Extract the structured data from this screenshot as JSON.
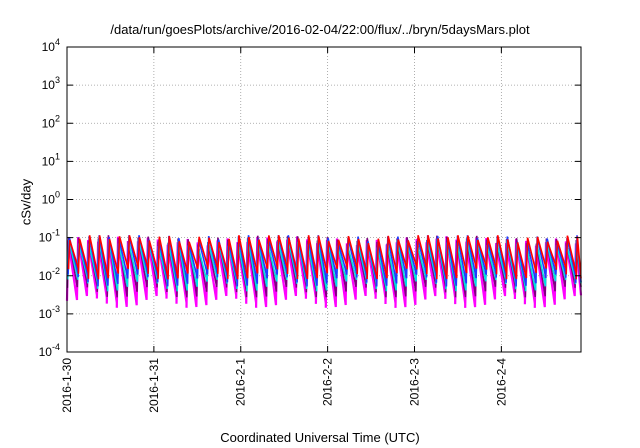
{
  "chart_data": {
    "type": "line",
    "title": "/data/run/goesPlots/archive/2016-02-04/22:00/flux/../bryn/5daysMars.plot",
    "xlabel": "Coordinated Universal Time (UTC)",
    "ylabel": "cSv/day",
    "y_scale": "log",
    "ylim": [
      0.0001,
      10000
    ],
    "y_ticks": [
      {
        "value": 0.0001,
        "mantissa": "10",
        "exponent": "-4"
      },
      {
        "value": 0.001,
        "mantissa": "10",
        "exponent": "-3"
      },
      {
        "value": 0.01,
        "mantissa": "10",
        "exponent": "-2"
      },
      {
        "value": 0.1,
        "mantissa": "10",
        "exponent": "-1"
      },
      {
        "value": 1,
        "mantissa": "10",
        "exponent": "0"
      },
      {
        "value": 10,
        "mantissa": "10",
        "exponent": "1"
      },
      {
        "value": 100,
        "mantissa": "10",
        "exponent": "2"
      },
      {
        "value": 1000,
        "mantissa": "10",
        "exponent": "3"
      },
      {
        "value": 10000,
        "mantissa": "10",
        "exponent": "4"
      }
    ],
    "xlim": [
      "2016-01-30T00:00",
      "2016-02-04T22:00"
    ],
    "x_ticks": [
      "2016-1-30",
      "2016-1-31",
      "2016-2-1",
      "2016-2-2",
      "2016-2-3",
      "2016-2-4"
    ],
    "grid": true,
    "legend": "none",
    "approx_oscillation_period_hours": 2.75,
    "series": [
      {
        "color": "#ff00ff",
        "peak": 0.085,
        "trough": 0.0022
      },
      {
        "color": "#800080",
        "peak": 0.09,
        "trough": 0.004
      },
      {
        "color": "#00e0e0",
        "peak": 0.075,
        "trough": 0.006
      },
      {
        "color": "#1e3cff",
        "peak": 0.1,
        "trough": 0.008
      },
      {
        "color": "#ff0000",
        "peak": 0.1,
        "trough": 0.012
      }
    ]
  }
}
